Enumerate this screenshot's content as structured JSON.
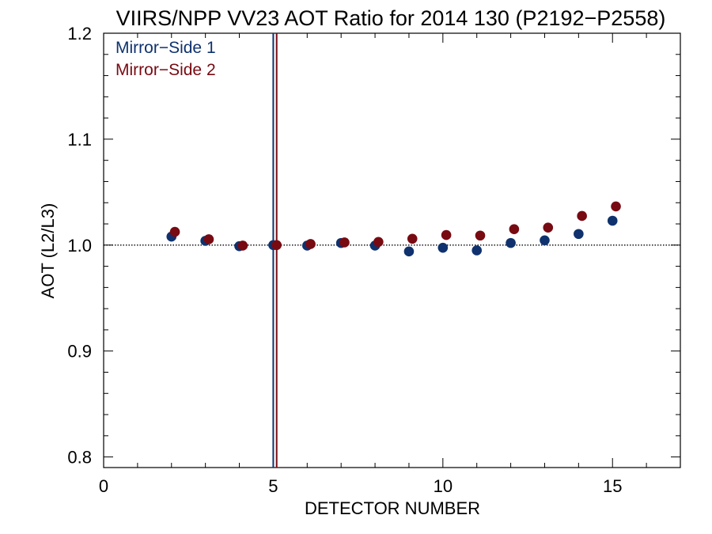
{
  "chart_data": {
    "type": "scatter",
    "title": "VIIRS/NPP VV23 AOT Ratio for 2014 130 (P2192−P2558)",
    "xlabel": "DETECTOR NUMBER",
    "ylabel": "AOT (L2/L3)",
    "xlim": [
      0,
      17
    ],
    "ylim": [
      0.79,
      1.2
    ],
    "xticks": [
      0,
      5,
      10,
      15
    ],
    "xtick_labels": [
      "0",
      "5",
      "10",
      "15"
    ],
    "yticks": [
      0.8,
      0.9,
      1.0,
      1.1,
      1.2
    ],
    "ytick_labels": [
      "0.8",
      "0.9",
      "1.0",
      "1.1",
      "1.2"
    ],
    "reference_line_y": 1.0,
    "legend_position": "top-left",
    "series": [
      {
        "name": "Mirror−Side 1",
        "color": "#0f326e",
        "x": [
          2,
          3,
          4,
          5,
          6,
          7,
          8,
          9,
          10,
          11,
          12,
          13,
          14,
          15
        ],
        "y": [
          1.008,
          1.004,
          0.999,
          1.0,
          0.9995,
          1.002,
          0.9995,
          0.994,
          0.9975,
          0.995,
          1.002,
          1.0045,
          1.0105,
          1.023
        ],
        "vline_x": 5.0
      },
      {
        "name": "Mirror−Side 2",
        "color": "#780a12",
        "x": [
          2.1,
          3.1,
          4.1,
          5.1,
          6.1,
          7.1,
          8.1,
          9.1,
          10.1,
          11.1,
          12.1,
          13.1,
          14.1,
          15.1
        ],
        "y": [
          1.0125,
          1.0055,
          0.9995,
          1.0,
          1.001,
          1.0025,
          1.003,
          1.006,
          1.0095,
          1.009,
          1.015,
          1.0165,
          1.0275,
          1.0365
        ],
        "vline_x": 5.1
      }
    ]
  }
}
